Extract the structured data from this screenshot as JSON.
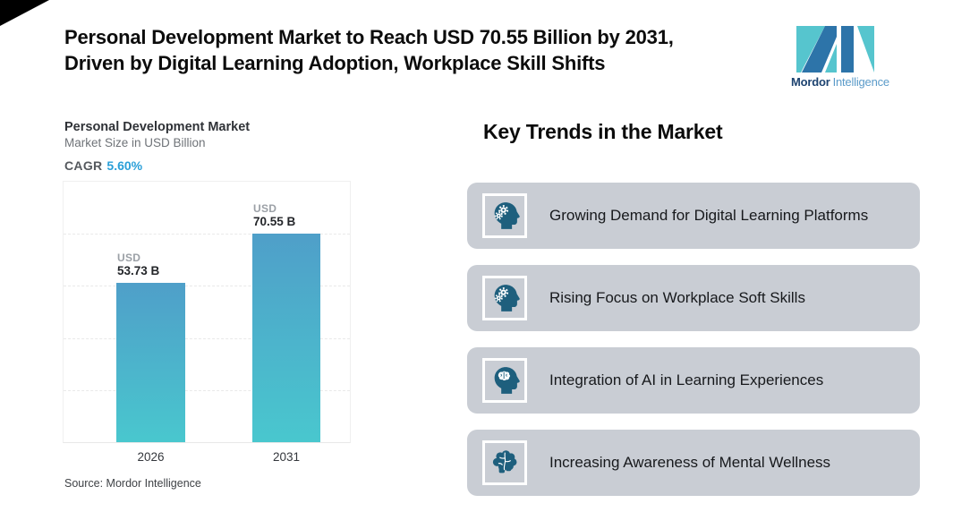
{
  "header": {
    "title_line1": "Personal Development Market to Reach USD 70.55 Billion by 2031,",
    "title_line2": "Driven by Digital Learning Adoption, Workplace Skill Shifts",
    "logo": {
      "brand_bold": "Mordor",
      "brand_light": "Intelligence",
      "teal": "#56c5ce",
      "blue": "#2d74a9"
    }
  },
  "chart": {
    "title": "Personal Development Market",
    "subtitle": "Market Size in USD Billion",
    "cagr_label": "CAGR",
    "cagr_value": "5.60%",
    "source": "Source: Mordor Intelligence"
  },
  "chart_data": {
    "type": "bar",
    "title": "Personal Development Market",
    "subtitle": "Market Size in USD Billion",
    "categories": [
      "2026",
      "2031"
    ],
    "values": [
      53.73,
      70.55
    ],
    "bar_value_labels": [
      {
        "prefix": "USD",
        "value": "53.73 B"
      },
      {
        "prefix": "USD",
        "value": "70.55 B"
      }
    ],
    "cagr": "5.60%",
    "xlabel": "",
    "ylabel": "Market Size in USD Billion",
    "ylim": [
      0,
      88
    ],
    "grid": "dashed-horizontal",
    "legend": "none",
    "bar_gradient_top": "#4f9fc9",
    "bar_gradient_bottom": "#49c7ce",
    "source": "Source: Mordor Intelligence"
  },
  "trends": {
    "heading": "Key Trends in the Market",
    "card_bg": "#c9cdd4",
    "icon_color": "#1e5f7d",
    "items": [
      {
        "icon": "head-gears-icon",
        "label": "Growing Demand for Digital Learning Platforms"
      },
      {
        "icon": "head-gears-icon",
        "label": "Rising Focus on Workplace Soft Skills"
      },
      {
        "icon": "head-brain-icon",
        "label": "Integration of AI in Learning Experiences"
      },
      {
        "icon": "brain-icon",
        "label": "Increasing Awareness of Mental Wellness"
      }
    ]
  }
}
